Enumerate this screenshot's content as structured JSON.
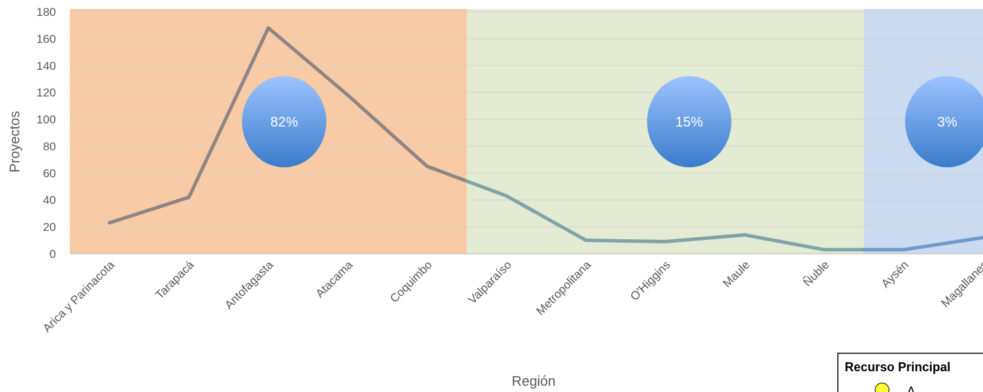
{
  "chart_data": {
    "type": "line",
    "categories": [
      "Arica y Parinacota",
      "Tarapacá",
      "Antofagasta",
      "Atacama",
      "Coquimbo",
      "Valparaíso",
      "Metropolitana",
      "O'Higgins",
      "Maule",
      "Ñuble",
      "Aysén",
      "Magallanes"
    ],
    "values": [
      23,
      42,
      168,
      118,
      65,
      43,
      10,
      9,
      14,
      3,
      3,
      12
    ],
    "xlabel": "Región",
    "ylabel": "Proyectos",
    "ylim": [
      0,
      180
    ],
    "yticks": [
      0,
      20,
      40,
      60,
      80,
      100,
      120,
      140,
      160,
      180
    ],
    "grid": true,
    "zones": [
      {
        "from_category": "Arica y Parinacota",
        "to_category": "Coquimbo",
        "color": "#F8CBA6",
        "line_color": "#8E8584",
        "share": "82%"
      },
      {
        "from_category": "Valparaíso",
        "to_category": "Ñuble",
        "color": "#E3EBD3",
        "line_color": "#7FA3A8",
        "share": "15%"
      },
      {
        "from_category": "Aysén",
        "to_category": "Magallanes",
        "color": "#C9DAF1",
        "line_color": "#6E99C9",
        "share": "3%"
      }
    ],
    "bubble_gradient": [
      "#9DC3FF",
      "#3A7CCB"
    ]
  },
  "legend": {
    "title": "Recurso Principal",
    "item": "A",
    "marker_color": "#FFFF33"
  }
}
